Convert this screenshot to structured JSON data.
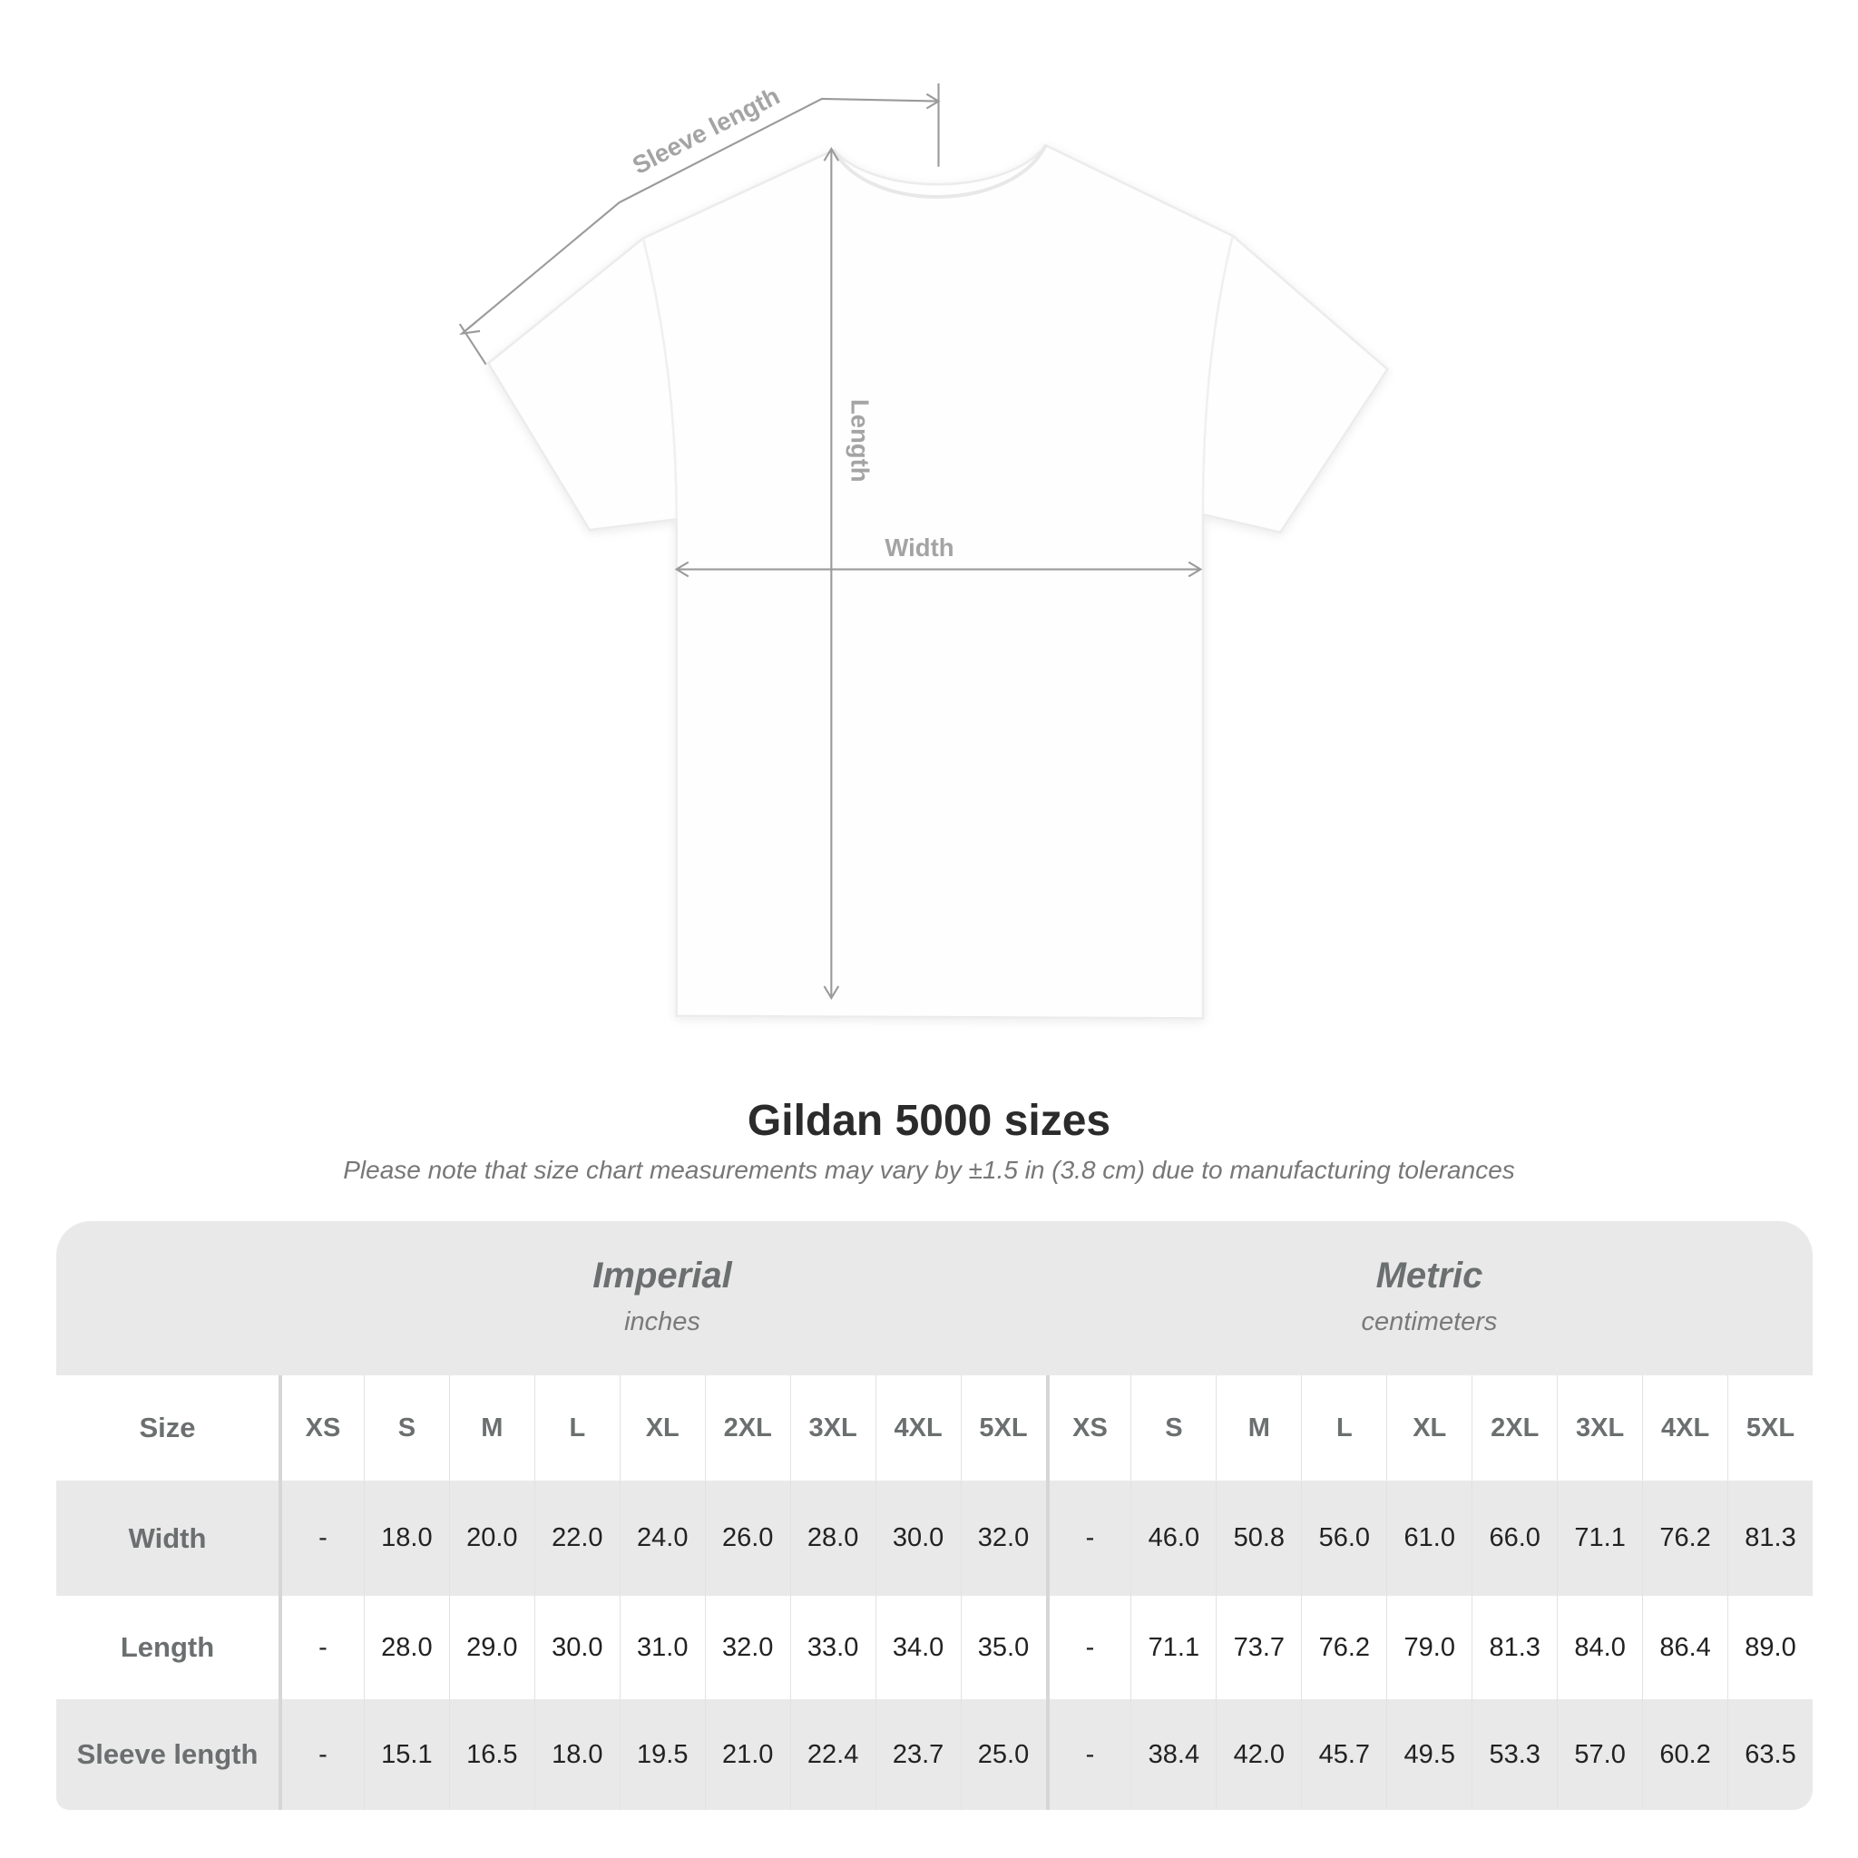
{
  "diagram": {
    "sleeve_label": "Sleeve length",
    "length_label": "Length",
    "width_label": "Width"
  },
  "title": "Gildan 5000 sizes",
  "subtitle": "Please note that size chart measurements may vary by ±1.5 in (3.8 cm) due to manufacturing tolerances",
  "table": {
    "imperial": {
      "heading": "Imperial",
      "unit": "inches"
    },
    "metric": {
      "heading": "Metric",
      "unit": "centimeters"
    },
    "size_label": "Size",
    "sizes": [
      "XS",
      "S",
      "M",
      "L",
      "XL",
      "2XL",
      "3XL",
      "4XL",
      "5XL"
    ],
    "rows": [
      {
        "label": "Width",
        "imperial": [
          "-",
          "18.0",
          "20.0",
          "22.0",
          "24.0",
          "26.0",
          "28.0",
          "30.0",
          "32.0"
        ],
        "metric": [
          "-",
          "46.0",
          "50.8",
          "56.0",
          "61.0",
          "66.0",
          "71.1",
          "76.2",
          "81.3"
        ]
      },
      {
        "label": "Length",
        "imperial": [
          "-",
          "28.0",
          "29.0",
          "30.0",
          "31.0",
          "32.0",
          "33.0",
          "34.0",
          "35.0"
        ],
        "metric": [
          "-",
          "71.1",
          "73.7",
          "76.2",
          "79.0",
          "81.3",
          "84.0",
          "86.4",
          "89.0"
        ]
      },
      {
        "label": "Sleeve length",
        "imperial": [
          "-",
          "15.1",
          "16.5",
          "18.0",
          "19.5",
          "21.0",
          "22.4",
          "23.7",
          "25.0"
        ],
        "metric": [
          "-",
          "38.4",
          "42.0",
          "45.7",
          "49.5",
          "53.3",
          "57.0",
          "60.2",
          "63.5"
        ]
      }
    ]
  },
  "colors": {
    "band": "#e9e9e9",
    "label_text": "#6b6f6f",
    "value_text": "#222222",
    "annotation": "#a4a4a4"
  }
}
